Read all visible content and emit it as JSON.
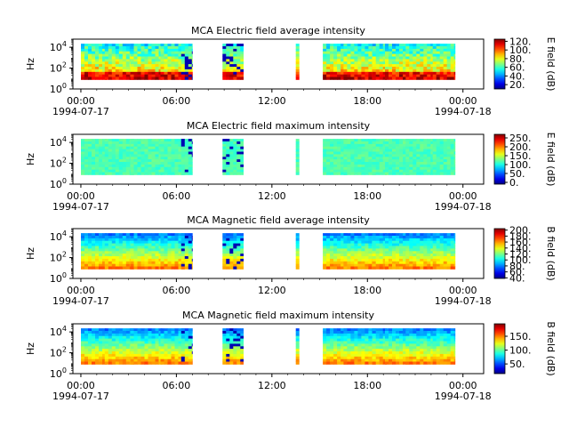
{
  "chart_data": [
    {
      "type": "heatmap",
      "title": "MCA  Electric field average intensity",
      "ylabel": "Hz",
      "y_scale": "log",
      "ytick_labels": [
        {
          "base": "10",
          "exp": "0"
        },
        {
          "base": "10",
          "exp": "2"
        },
        {
          "base": "10",
          "exp": "4"
        }
      ],
      "xtick_labels": [
        "00:00",
        "06:00",
        "12:00",
        "18:00",
        "00:00"
      ],
      "date_start": "1994-07-17",
      "date_end": "1994-07-18",
      "x_range_hours": [
        -0.5,
        25.3
      ],
      "freq_range_hz": [
        1,
        60000
      ],
      "colorbar": {
        "label": "E field (dB)",
        "range": [
          10,
          125
        ],
        "ticks": [
          "120.",
          "100.",
          "80.",
          "60.",
          "40.",
          "20."
        ],
        "tick_values": [
          120,
          100,
          80,
          60,
          40,
          20
        ]
      },
      "bursts_hours": [
        [
          0,
          1.6
        ],
        [
          1.5,
          3.3
        ],
        [
          3.1,
          5.1
        ],
        [
          5.0,
          6.5
        ],
        [
          6.3,
          7.0
        ],
        [
          8.9,
          10.2
        ],
        [
          13.5,
          13.7
        ],
        [
          15.2,
          16.7
        ],
        [
          16.5,
          18.5
        ],
        [
          18.3,
          19.2
        ],
        [
          19.1,
          20.6
        ],
        [
          20.4,
          22.1
        ],
        [
          22.1,
          23.5
        ]
      ]
    },
    {
      "type": "heatmap",
      "title": "MCA  Electric field maximum intensity",
      "ylabel": "Hz",
      "y_scale": "log",
      "ytick_labels": [
        {
          "base": "10",
          "exp": "0"
        },
        {
          "base": "10",
          "exp": "2"
        },
        {
          "base": "10",
          "exp": "4"
        }
      ],
      "xtick_labels": [
        "00:00",
        "06:00",
        "12:00",
        "18:00",
        "00:00"
      ],
      "date_start": "1994-07-17",
      "date_end": "1994-07-18",
      "x_range_hours": [
        -0.5,
        25.3
      ],
      "freq_range_hz": [
        1,
        60000
      ],
      "colorbar": {
        "label": "E field (dB)",
        "range": [
          -10,
          270
        ],
        "ticks": [
          "250.",
          "200.",
          "150.",
          "100.",
          "50.",
          "0."
        ],
        "tick_values": [
          250,
          200,
          150,
          100,
          50,
          0
        ]
      },
      "bursts_hours": [
        [
          0,
          1.6
        ],
        [
          1.5,
          3.3
        ],
        [
          3.1,
          5.1
        ],
        [
          5.0,
          6.5
        ],
        [
          6.3,
          7.0
        ],
        [
          8.9,
          10.2
        ],
        [
          13.5,
          13.7
        ],
        [
          15.2,
          16.7
        ],
        [
          16.5,
          18.5
        ],
        [
          18.3,
          19.2
        ],
        [
          19.1,
          20.6
        ],
        [
          20.4,
          22.1
        ],
        [
          22.1,
          23.5
        ]
      ]
    },
    {
      "type": "heatmap",
      "title": "MCA  Magnetic field average intensity",
      "ylabel": "Hz",
      "y_scale": "log",
      "ytick_labels": [
        {
          "base": "10",
          "exp": "0"
        },
        {
          "base": "10",
          "exp": "2"
        },
        {
          "base": "10",
          "exp": "4"
        }
      ],
      "xtick_labels": [
        "00:00",
        "06:00",
        "12:00",
        "18:00",
        "00:00"
      ],
      "date_start": "1994-07-17",
      "date_end": "1994-07-18",
      "x_range_hours": [
        -0.5,
        25.3
      ],
      "freq_range_hz": [
        1,
        60000
      ],
      "colorbar": {
        "label": "B field (dB)",
        "range": [
          38,
          205
        ],
        "ticks": [
          "200.",
          "180.",
          "160.",
          "140.",
          "120.",
          "100.",
          "80.",
          "60.",
          "40."
        ],
        "tick_values": [
          200,
          180,
          160,
          140,
          120,
          100,
          80,
          60,
          40
        ]
      },
      "bursts_hours": [
        [
          0,
          1.6
        ],
        [
          1.5,
          3.3
        ],
        [
          3.1,
          5.1
        ],
        [
          5.0,
          6.5
        ],
        [
          6.3,
          7.0
        ],
        [
          8.9,
          10.2
        ],
        [
          13.5,
          13.7
        ],
        [
          15.2,
          16.7
        ],
        [
          16.5,
          18.5
        ],
        [
          18.3,
          19.2
        ],
        [
          19.1,
          20.6
        ],
        [
          20.4,
          22.1
        ],
        [
          22.1,
          23.5
        ]
      ]
    },
    {
      "type": "heatmap",
      "title": "MCA  Magnetic field maximum intensity",
      "ylabel": "Hz",
      "y_scale": "log",
      "ytick_labels": [
        {
          "base": "10",
          "exp": "0"
        },
        {
          "base": "10",
          "exp": "2"
        },
        {
          "base": "10",
          "exp": "4"
        }
      ],
      "xtick_labels": [
        "00:00",
        "06:00",
        "12:00",
        "18:00",
        "00:00"
      ],
      "date_start": "1994-07-17",
      "date_end": "1994-07-18",
      "x_range_hours": [
        -0.5,
        25.3
      ],
      "freq_range_hz": [
        1,
        60000
      ],
      "colorbar": {
        "label": "B field (dB)",
        "range": [
          15,
          195
        ],
        "ticks": [
          "150.",
          "100.",
          "50."
        ],
        "tick_values": [
          150,
          100,
          50
        ]
      },
      "bursts_hours": [
        [
          0,
          1.6
        ],
        [
          1.5,
          3.3
        ],
        [
          3.1,
          5.1
        ],
        [
          5.0,
          6.5
        ],
        [
          6.3,
          7.0
        ],
        [
          8.9,
          10.2
        ],
        [
          13.5,
          13.7
        ],
        [
          15.2,
          16.7
        ],
        [
          16.5,
          18.5
        ],
        [
          18.3,
          19.2
        ],
        [
          19.1,
          20.6
        ],
        [
          20.4,
          22.1
        ],
        [
          22.1,
          23.5
        ]
      ]
    }
  ]
}
